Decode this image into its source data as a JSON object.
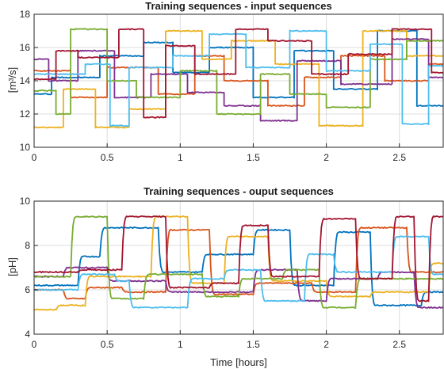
{
  "colors": [
    "#0072BD",
    "#D95319",
    "#EDB120",
    "#7E2F8E",
    "#77AC30",
    "#4DBEEE",
    "#A2142F"
  ],
  "chart_data": [
    {
      "type": "line",
      "title": "Training sequences - input sequences",
      "xlabel": "",
      "ylabel": "[m³/s]",
      "xlim": [
        0,
        2.8
      ],
      "ylim": [
        10,
        18
      ],
      "xticks": [
        0,
        0.5,
        1,
        1.5,
        2,
        2.5
      ],
      "xtick_labels": [
        "0",
        "0.5",
        "1",
        "1.5",
        "2",
        "2.5"
      ],
      "yticks": [
        10,
        12,
        14,
        16,
        18
      ],
      "ytick_labels": [
        "10",
        "12",
        "14",
        "16",
        "18"
      ],
      "grid": true,
      "series": [
        {
          "steps": [
            [
              0,
              13.2
            ],
            [
              0.12,
              14.2
            ],
            [
              0.45,
              15.5
            ],
            [
              0.75,
              16.3
            ],
            [
              0.95,
              14.5
            ],
            [
              1.2,
              16.0
            ],
            [
              1.5,
              13.0
            ],
            [
              1.78,
              15.8
            ],
            [
              2.05,
              13.5
            ],
            [
              2.35,
              17.0
            ],
            [
              2.62,
              12.5
            ]
          ]
        },
        {
          "steps": [
            [
              0,
              14.6
            ],
            [
              0.25,
              13.0
            ],
            [
              0.5,
              14.8
            ],
            [
              0.85,
              13.2
            ],
            [
              1.1,
              15.5
            ],
            [
              1.3,
              14.0
            ],
            [
              1.6,
              12.5
            ],
            [
              1.85,
              14.2
            ],
            [
              2.1,
              15.5
            ],
            [
              2.4,
              14.0
            ],
            [
              2.7,
              15.0
            ]
          ]
        },
        {
          "steps": [
            [
              0,
              11.2
            ],
            [
              0.2,
              13.5
            ],
            [
              0.42,
              11.2
            ],
            [
              0.65,
              12.3
            ],
            [
              0.9,
              17.0
            ],
            [
              1.15,
              15.3
            ],
            [
              1.35,
              16.4
            ],
            [
              1.65,
              15.0
            ],
            [
              1.95,
              11.3
            ],
            [
              2.25,
              17.0
            ],
            [
              2.55,
              15.5
            ]
          ]
        },
        {
          "steps": [
            [
              0,
              15.3
            ],
            [
              0.1,
              14.0
            ],
            [
              0.3,
              15.8
            ],
            [
              0.55,
              13.0
            ],
            [
              0.8,
              14.4
            ],
            [
              1.05,
              13.3
            ],
            [
              1.3,
              12.5
            ],
            [
              1.55,
              11.6
            ],
            [
              1.8,
              15.2
            ],
            [
              2.1,
              13.8
            ],
            [
              2.45,
              16.5
            ],
            [
              2.7,
              14.2
            ]
          ]
        },
        {
          "steps": [
            [
              0,
              13.4
            ],
            [
              0.15,
              12.0
            ],
            [
              0.25,
              17.1
            ],
            [
              0.5,
              14.0
            ],
            [
              0.7,
              13.0
            ],
            [
              1.0,
              14.6
            ],
            [
              1.25,
              12.0
            ],
            [
              1.55,
              14.4
            ],
            [
              1.75,
              13.2
            ],
            [
              2.0,
              12.4
            ],
            [
              2.3,
              15.3
            ],
            [
              2.55,
              16.4
            ]
          ]
        },
        {
          "steps": [
            [
              0,
              14.4
            ],
            [
              0.35,
              15.0
            ],
            [
              0.52,
              11.3
            ],
            [
              0.65,
              14.8
            ],
            [
              0.95,
              15.5
            ],
            [
              1.2,
              16.8
            ],
            [
              1.45,
              14.8
            ],
            [
              1.75,
              17.0
            ],
            [
              2.0,
              14.6
            ],
            [
              2.3,
              16.2
            ],
            [
              2.52,
              11.4
            ],
            [
              2.7,
              14.9
            ]
          ]
        },
        {
          "steps": [
            [
              0,
              14.1
            ],
            [
              0.15,
              15.8
            ],
            [
              0.3,
              15.4
            ],
            [
              0.58,
              17.1
            ],
            [
              0.75,
              11.8
            ],
            [
              0.9,
              16.1
            ],
            [
              1.1,
              14.4
            ],
            [
              1.38,
              17.1
            ],
            [
              1.6,
              16.4
            ],
            [
              1.9,
              14.4
            ],
            [
              2.15,
              15.6
            ],
            [
              2.45,
              17.1
            ],
            [
              2.72,
              14.5
            ]
          ]
        }
      ]
    },
    {
      "type": "line",
      "title": "Training sequences - ouput sequences",
      "xlabel": "Time [hours]",
      "ylabel": "[pH]",
      "xlim": [
        0,
        2.8
      ],
      "ylim": [
        4,
        10
      ],
      "xticks": [
        0,
        0.5,
        1,
        1.5,
        2,
        2.5
      ],
      "xtick_labels": [
        "0",
        "0.5",
        "1",
        "1.5",
        "2",
        "2.5"
      ],
      "yticks": [
        4,
        6,
        8,
        10
      ],
      "ytick_labels": [
        "4",
        "6",
        "8",
        "10"
      ],
      "grid": true,
      "series": [
        {
          "steps": [
            [
              0,
              6.2
            ],
            [
              0.3,
              7.5
            ],
            [
              0.45,
              8.8
            ],
            [
              0.85,
              6.8
            ],
            [
              1.15,
              7.6
            ],
            [
              1.5,
              8.7
            ],
            [
              1.75,
              6.2
            ],
            [
              2.05,
              8.6
            ],
            [
              2.3,
              5.3
            ],
            [
              2.65,
              5.9
            ]
          ]
        },
        {
          "steps": [
            [
              0,
              6.0
            ],
            [
              0.2,
              5.6
            ],
            [
              0.35,
              6.1
            ],
            [
              0.6,
              5.9
            ],
            [
              0.9,
              8.7
            ],
            [
              1.2,
              5.8
            ],
            [
              1.5,
              6.3
            ],
            [
              1.9,
              5.9
            ],
            [
              2.2,
              8.8
            ],
            [
              2.55,
              6.8
            ]
          ]
        },
        {
          "steps": [
            [
              0,
              5.1
            ],
            [
              0.15,
              5.3
            ],
            [
              0.35,
              6.6
            ],
            [
              0.8,
              9.3
            ],
            [
              1.05,
              6.3
            ],
            [
              1.3,
              8.4
            ],
            [
              1.6,
              6.4
            ],
            [
              2.0,
              5.7
            ],
            [
              2.3,
              5.9
            ],
            [
              2.7,
              7.2
            ]
          ]
        },
        {
          "steps": [
            [
              0,
              6.6
            ],
            [
              0.2,
              7.0
            ],
            [
              0.5,
              6.4
            ],
            [
              0.9,
              5.9
            ],
            [
              1.2,
              5.9
            ],
            [
              1.5,
              6.9
            ],
            [
              1.8,
              5.5
            ],
            [
              2.0,
              6.5
            ],
            [
              2.35,
              6.8
            ],
            [
              2.6,
              5.2
            ]
          ]
        },
        {
          "steps": [
            [
              0,
              6.6
            ],
            [
              0.25,
              9.3
            ],
            [
              0.5,
              5.6
            ],
            [
              0.75,
              6.7
            ],
            [
              1.15,
              5.7
            ],
            [
              1.4,
              6.5
            ],
            [
              1.7,
              6.9
            ],
            [
              1.95,
              5.2
            ],
            [
              2.2,
              6.5
            ],
            [
              2.55,
              6.5
            ]
          ]
        },
        {
          "steps": [
            [
              0,
              6.0
            ],
            [
              0.3,
              6.7
            ],
            [
              0.55,
              6.4
            ],
            [
              0.65,
              5.2
            ],
            [
              1.05,
              6.5
            ],
            [
              1.3,
              6.9
            ],
            [
              1.55,
              5.5
            ],
            [
              1.85,
              7.6
            ],
            [
              2.05,
              6.8
            ],
            [
              2.45,
              8.4
            ],
            [
              2.7,
              6.7
            ]
          ]
        },
        {
          "steps": [
            [
              0,
              6.8
            ],
            [
              0.3,
              6.9
            ],
            [
              0.6,
              9.3
            ],
            [
              0.9,
              6.1
            ],
            [
              1.2,
              6.3
            ],
            [
              1.4,
              8.9
            ],
            [
              1.6,
              6.6
            ],
            [
              1.95,
              9.2
            ],
            [
              2.2,
              6.5
            ],
            [
              2.45,
              9.3
            ],
            [
              2.6,
              5.5
            ],
            [
              2.7,
              9.3
            ]
          ]
        }
      ]
    }
  ]
}
